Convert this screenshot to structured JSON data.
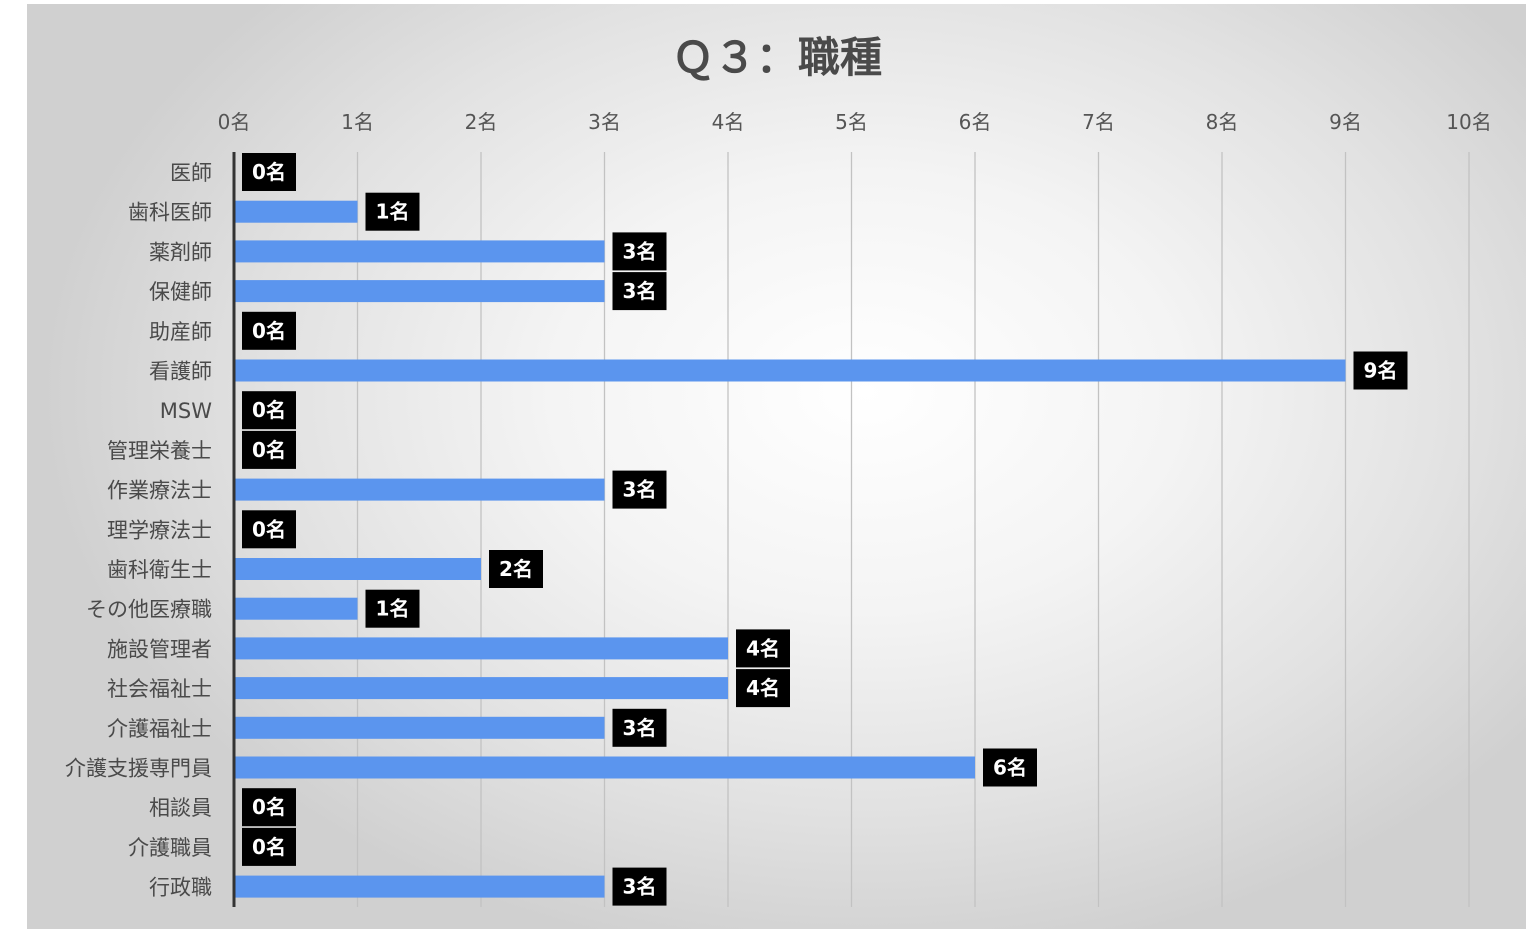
{
  "chart_data": {
    "type": "bar",
    "orientation": "horizontal",
    "title": "Ｑ３：職種",
    "xlim": [
      0,
      10
    ],
    "x_ticks": [
      "0名",
      "1名",
      "2名",
      "3名",
      "4名",
      "5名",
      "6名",
      "7名",
      "8名",
      "9名",
      "10名"
    ],
    "value_unit": "名",
    "grid": true,
    "categories": [
      "医師",
      "歯科医師",
      "薬剤師",
      "保健師",
      "助産師",
      "看護師",
      "MSW",
      "管理栄養士",
      "作業療法士",
      "理学療法士",
      "歯科衛生士",
      "その他医療職",
      "施設管理者",
      "社会福祉士",
      "介護福祉士",
      "介護支援専門員",
      "相談員",
      "介護職員",
      "行政職"
    ],
    "values": [
      0,
      1,
      3,
      3,
      0,
      9,
      0,
      0,
      3,
      0,
      2,
      1,
      4,
      4,
      3,
      6,
      0,
      0,
      3
    ],
    "data_labels": [
      "0名",
      "1名",
      "3名",
      "3名",
      "0名",
      "9名",
      "0名",
      "0名",
      "3名",
      "0名",
      "2名",
      "1名",
      "4名",
      "4名",
      "3名",
      "6名",
      "0名",
      "0名",
      "3名"
    ],
    "colors": {
      "bar": "#5b95ee",
      "label_background": "#000000",
      "label_text": "#ffffff"
    }
  }
}
